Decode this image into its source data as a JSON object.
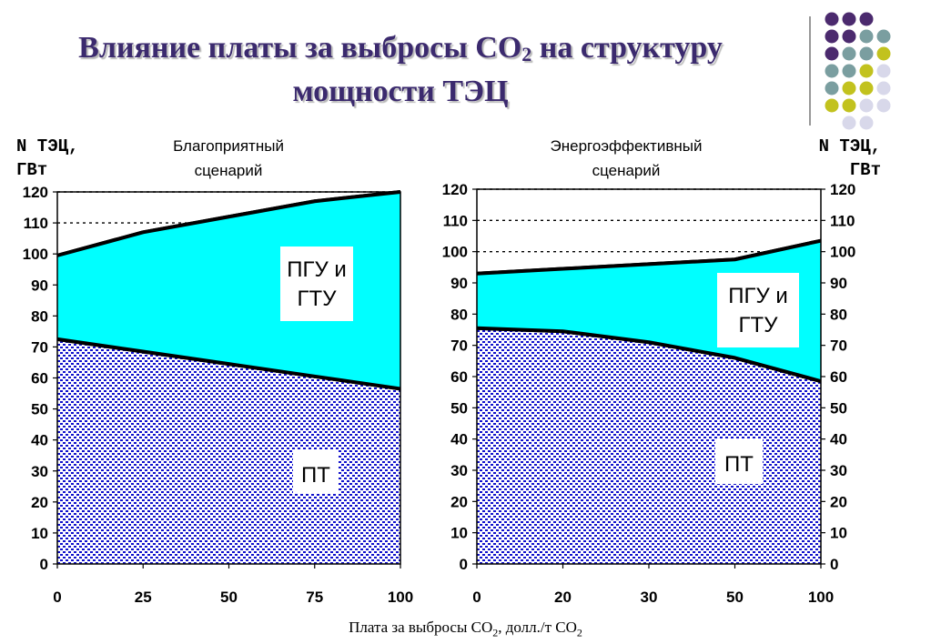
{
  "title": {
    "line1_before": "Влияние платы за выбросы CO",
    "line1_sub": "2",
    "line1_after": " на структуру",
    "line2": "мощности ТЭЦ"
  },
  "y_axis_label": {
    "line1": "N ТЭЦ,",
    "line2": "ГВт"
  },
  "x_axis_title": {
    "before": "Плата за выбросы CO",
    "sub1": "2",
    "middle": ", долл./т CO",
    "sub2": "2"
  },
  "colors": {
    "title": "#3b2a6e",
    "pgu_fill": "#00ffff",
    "pt_pattern_fg": "#1010cc",
    "pt_pattern_bg": "#ffffff",
    "dots_purple": "#4b2a6e",
    "dots_teal": "#7a9ea0",
    "dots_olive": "#c2c21e",
    "dots_lavender": "#d8d8ea"
  },
  "chart_data": [
    {
      "type": "area",
      "stacked": true,
      "title": "Благоприятный сценарий",
      "title_lines": [
        "Благоприятный",
        "сценарий"
      ],
      "x": [
        0,
        25,
        50,
        75,
        100
      ],
      "x_tick_labels": [
        "0",
        "25",
        "50",
        "75",
        "100"
      ],
      "y_axis_side": "left",
      "ylim": [
        0,
        120
      ],
      "y_ticks": [
        0,
        10,
        20,
        30,
        40,
        50,
        60,
        70,
        80,
        90,
        100,
        110,
        120
      ],
      "dashed_gridlines": [
        110,
        120
      ],
      "series": [
        {
          "name": "ПТ",
          "values": [
            72.5,
            68.5,
            64.5,
            60.5,
            56.5
          ]
        },
        {
          "name": "ПГУ и ГТУ",
          "values": [
            27,
            38.5,
            47.5,
            56.5,
            63.5
          ]
        }
      ],
      "total": [
        99.5,
        107,
        112,
        117,
        120
      ],
      "labels": [
        {
          "lines": [
            "ПГУ и",
            "ГТУ"
          ]
        },
        {
          "lines": [
            "ПТ"
          ]
        }
      ]
    },
    {
      "type": "area",
      "stacked": true,
      "title": "Энергоэффективный сценарий",
      "title_lines": [
        "Энергоэффективный",
        "сценарий"
      ],
      "x": [
        0,
        20,
        30,
        50,
        100
      ],
      "x_tick_labels": [
        "0",
        "20",
        "30",
        "50",
        "100"
      ],
      "x_positions": [
        0,
        1,
        2,
        3,
        4
      ],
      "y_axis_side": "both",
      "ylim": [
        0,
        120
      ],
      "y_ticks": [
        0,
        10,
        20,
        30,
        40,
        50,
        60,
        70,
        80,
        90,
        100,
        110,
        120
      ],
      "dashed_gridlines": [
        100,
        110,
        120
      ],
      "series": [
        {
          "name": "ПТ",
          "values": [
            75.5,
            74.5,
            71,
            66,
            58.5
          ]
        },
        {
          "name": "ПГУ и ГТУ",
          "values": [
            17.5,
            20,
            25,
            31.5,
            45
          ]
        }
      ],
      "total": [
        93,
        94.5,
        96,
        97.5,
        103.5
      ],
      "labels": [
        {
          "lines": [
            "ПГУ и",
            "ГТУ"
          ]
        },
        {
          "lines": [
            "ПТ"
          ]
        }
      ]
    }
  ]
}
